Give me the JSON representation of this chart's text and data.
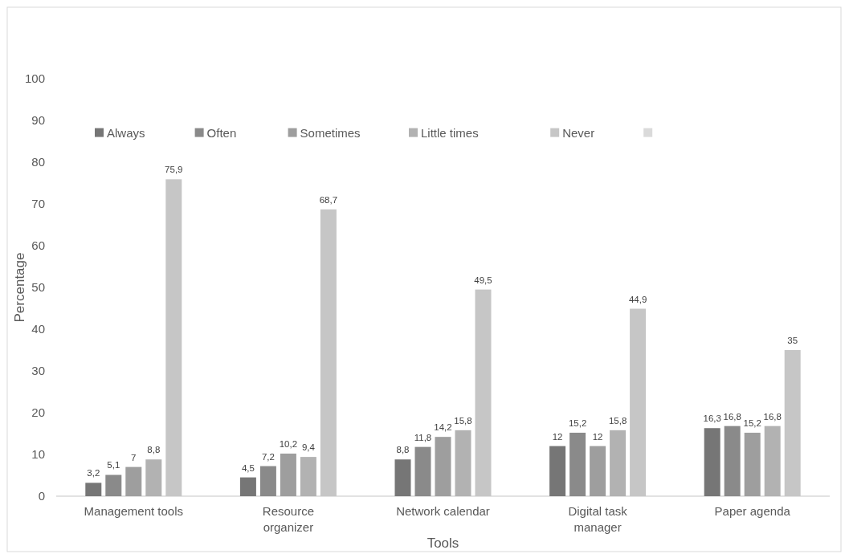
{
  "chart_data": {
    "type": "bar",
    "xlabel": "Tools",
    "ylabel": "Percentage",
    "categories": [
      "Management tools",
      "Resource organizer",
      "Network calendar",
      "Digital task manager",
      "Paper agenda"
    ],
    "series": [
      {
        "name": "Always",
        "color": "#767676",
        "values": [
          3.2,
          4.5,
          8.8,
          12,
          16.3
        ],
        "value_labels": [
          "3,2",
          "4,5",
          "8,8",
          "12",
          "16,3"
        ]
      },
      {
        "name": "Often",
        "color": "#8a8a8a",
        "values": [
          5.1,
          7.2,
          11.8,
          15.2,
          16.8
        ],
        "value_labels": [
          "5,1",
          "7,2",
          "11,8",
          "15,2",
          "16,8"
        ]
      },
      {
        "name": "Sometimes",
        "color": "#9e9e9e",
        "values": [
          7,
          10.2,
          14.2,
          12,
          15.2
        ],
        "value_labels": [
          "7",
          "10,2",
          "14,2",
          "12",
          "15,2"
        ]
      },
      {
        "name": "Little times",
        "color": "#b2b2b2",
        "values": [
          8.8,
          9.4,
          15.8,
          15.8,
          16.8
        ],
        "value_labels": [
          "8,8",
          "9,4",
          "15,8",
          "15,8",
          "16,8"
        ]
      },
      {
        "name": "Never",
        "color": "#c6c6c6",
        "values": [
          75.9,
          68.7,
          49.5,
          44.9,
          35
        ],
        "value_labels": [
          "75,9",
          "68,7",
          "49,5",
          "44,9",
          "35"
        ]
      },
      {
        "color": "#dadada",
        "values": [
          null,
          null,
          null,
          null,
          null
        ]
      }
    ],
    "ylim": [
      0,
      100
    ],
    "yticks": [
      0,
      10,
      20,
      30,
      40,
      50,
      60,
      70,
      80,
      90,
      100
    ],
    "grid": false,
    "legend": "top"
  }
}
